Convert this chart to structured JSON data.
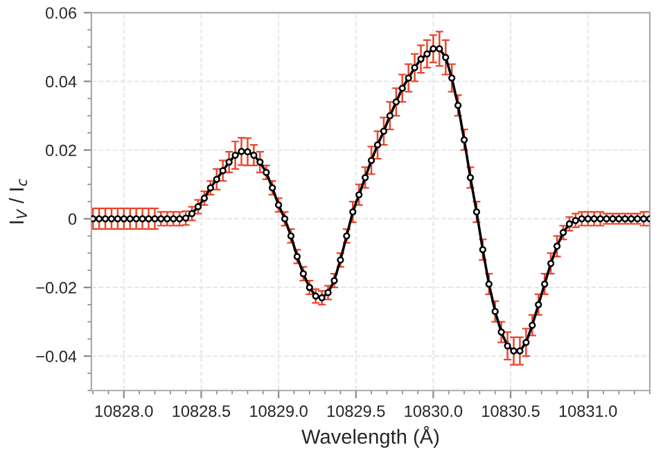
{
  "chart_data": {
    "type": "line",
    "xlabel": "Wavelength (Å)",
    "ylabel": "I$_{V}$ / I$_{c}$",
    "x": [
      10827.8,
      10827.84,
      10827.88,
      10827.92,
      10827.96,
      10828.0,
      10828.04,
      10828.08,
      10828.12,
      10828.16,
      10828.2,
      10828.24,
      10828.28,
      10828.32,
      10828.36,
      10828.4,
      10828.44,
      10828.48,
      10828.52,
      10828.56,
      10828.6,
      10828.64,
      10828.68,
      10828.72,
      10828.76,
      10828.8,
      10828.84,
      10828.88,
      10828.92,
      10828.96,
      10829.0,
      10829.04,
      10829.08,
      10829.12,
      10829.16,
      10829.2,
      10829.24,
      10829.28,
      10829.32,
      10829.36,
      10829.4,
      10829.44,
      10829.48,
      10829.52,
      10829.56,
      10829.6,
      10829.64,
      10829.68,
      10829.72,
      10829.76,
      10829.8,
      10829.84,
      10829.88,
      10829.92,
      10829.96,
      10830.0,
      10830.04,
      10830.08,
      10830.12,
      10830.16,
      10830.2,
      10830.24,
      10830.28,
      10830.32,
      10830.36,
      10830.4,
      10830.44,
      10830.48,
      10830.52,
      10830.56,
      10830.6,
      10830.64,
      10830.68,
      10830.72,
      10830.76,
      10830.8,
      10830.84,
      10830.88,
      10830.92,
      10830.96,
      10831.0,
      10831.04,
      10831.08,
      10831.12,
      10831.16,
      10831.2,
      10831.24,
      10831.28,
      10831.32,
      10831.36,
      10831.4
    ],
    "series": [
      {
        "color": "#000000",
        "marker": "circle",
        "values": [
          0,
          0,
          0,
          0,
          0,
          0,
          0,
          0,
          0,
          0,
          0,
          0,
          0,
          0,
          0,
          0.0002,
          0.0015,
          0.0035,
          0.006,
          0.009,
          0.0115,
          0.014,
          0.0165,
          0.0185,
          0.0196,
          0.0195,
          0.0185,
          0.0165,
          0.0135,
          0.009,
          0.004,
          0.0,
          -0.005,
          -0.011,
          -0.016,
          -0.02,
          -0.0225,
          -0.023,
          -0.0215,
          -0.018,
          -0.012,
          -0.005,
          0.002,
          0.007,
          0.012,
          0.017,
          0.0215,
          0.0255,
          0.03,
          0.034,
          0.038,
          0.041,
          0.044,
          0.0465,
          0.048,
          0.0495,
          0.0495,
          0.047,
          0.041,
          0.033,
          0.023,
          0.012,
          0.002,
          -0.009,
          -0.019,
          -0.027,
          -0.033,
          -0.037,
          -0.0385,
          -0.0385,
          -0.036,
          -0.031,
          -0.025,
          -0.019,
          -0.013,
          -0.008,
          -0.004,
          -0.0015,
          -0.0005,
          0,
          0,
          0,
          0,
          0,
          0,
          0,
          0,
          0,
          0,
          0,
          0
        ],
        "errors": [
          0.003,
          0.003,
          0.003,
          0.003,
          0.003,
          0.003,
          0.003,
          0.003,
          0.003,
          0.003,
          0.003,
          0.002,
          0.002,
          0.002,
          0.002,
          0.002,
          0.002,
          0.002,
          0.002,
          0.002,
          0.003,
          0.003,
          0.003,
          0.004,
          0.004,
          0.004,
          0.003,
          0.003,
          0.002,
          0.002,
          0.002,
          0.002,
          0.002,
          0.002,
          0.002,
          0.002,
          0.002,
          0.002,
          0.002,
          0.002,
          0.002,
          0.002,
          0.003,
          0.003,
          0.003,
          0.004,
          0.004,
          0.004,
          0.004,
          0.004,
          0.004,
          0.004,
          0.004,
          0.004,
          0.004,
          0.004,
          0.005,
          0.005,
          0.004,
          0.003,
          0.003,
          0.003,
          0.003,
          0.003,
          0.003,
          0.003,
          0.003,
          0.004,
          0.004,
          0.004,
          0.004,
          0.003,
          0.003,
          0.003,
          0.003,
          0.003,
          0.002,
          0.002,
          0.002,
          0.002,
          0.002,
          0.002,
          0.002,
          0.0015,
          0.0015,
          0.0015,
          0.0015,
          0.0015,
          0.0015,
          0.002,
          0.002
        ]
      }
    ],
    "xlim": [
      10827.79,
      10831.4
    ],
    "ylim": [
      -0.05,
      0.06
    ],
    "xticks": [
      {
        "value": 10828.0,
        "label": "10828.0"
      },
      {
        "value": 10828.5,
        "label": "10828.5"
      },
      {
        "value": 10829.0,
        "label": "10829.0"
      },
      {
        "value": 10829.5,
        "label": "10829.5"
      },
      {
        "value": 10830.0,
        "label": "10830.0"
      },
      {
        "value": 10830.5,
        "label": "10830.5"
      },
      {
        "value": 10831.0,
        "label": "10831.0"
      }
    ],
    "yticks": [
      {
        "value": -0.04,
        "label": "−0.04"
      },
      {
        "value": -0.02,
        "label": "−0.02"
      },
      0,
      {
        "value": 0.02,
        "label": "0.02"
      },
      {
        "value": 0.04,
        "label": "0.04"
      },
      {
        "value": 0.06,
        "label": "0.06"
      }
    ],
    "grid": true,
    "line_style": "solid"
  }
}
